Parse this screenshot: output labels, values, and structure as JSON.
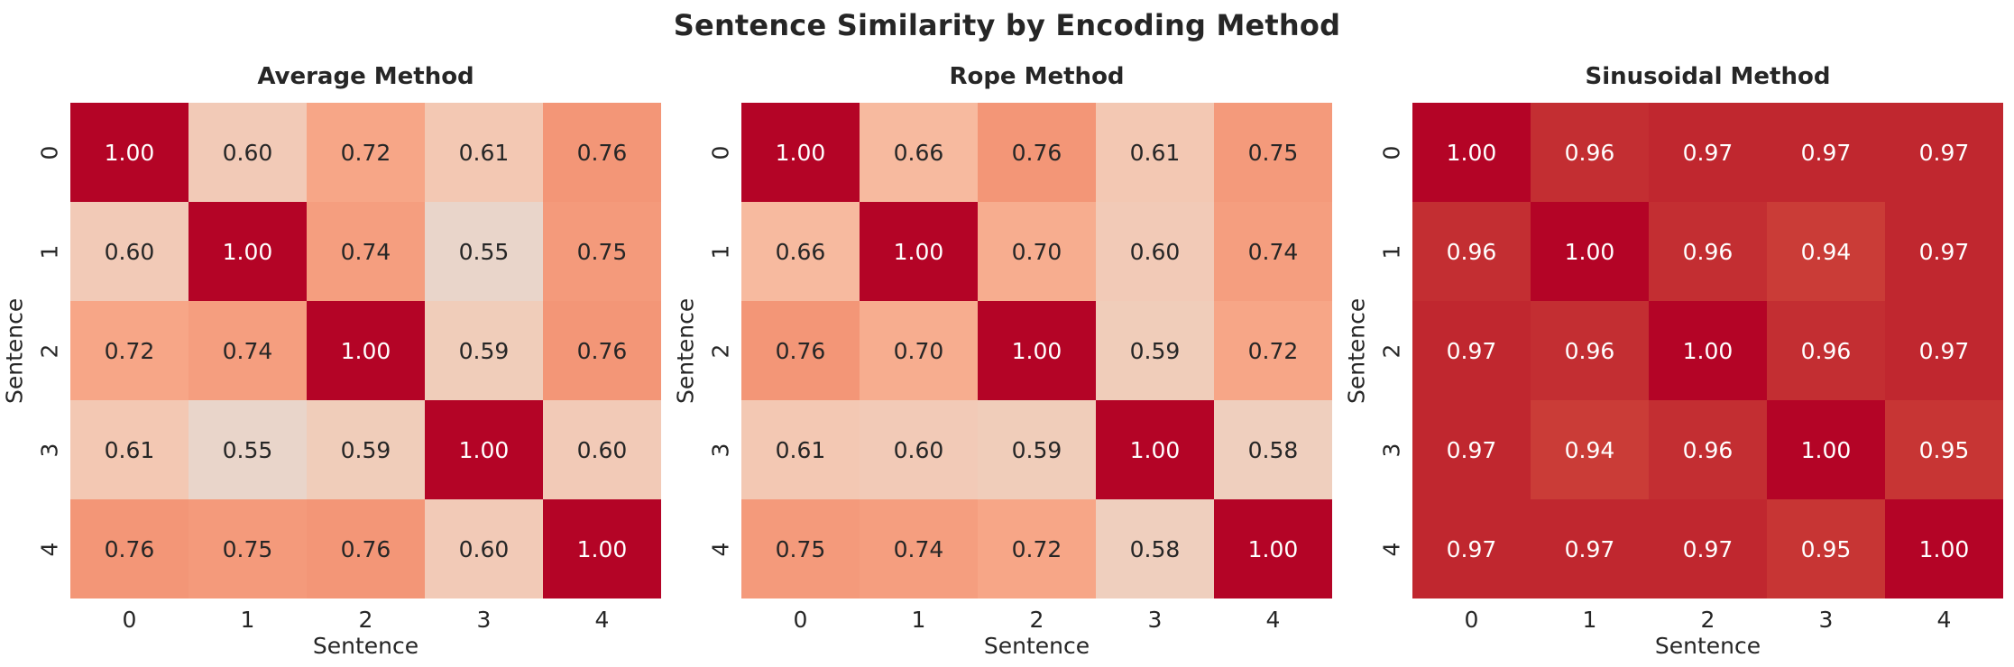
{
  "figure": {
    "suptitle": "Sentence Similarity by Encoding Method",
    "background": "#ffffff",
    "text_color": "#262626",
    "annot_dark_text": "#262626",
    "annot_light_text": "#ffffff"
  },
  "colormap": {
    "name": "coolwarm",
    "stops": [
      [
        0.5,
        "#dddddd"
      ],
      [
        0.53125,
        "#e5d8d1"
      ],
      [
        0.5625,
        "#ecd3c5"
      ],
      [
        0.59375,
        "#f1ccb9"
      ],
      [
        0.625,
        "#f5c4ad"
      ],
      [
        0.65625,
        "#f7bba0"
      ],
      [
        0.6875,
        "#f7b194"
      ],
      [
        0.71875,
        "#f7a687"
      ],
      [
        0.75,
        "#f49a7b"
      ],
      [
        0.78125,
        "#f18d6f"
      ],
      [
        0.8125,
        "#ec7f63"
      ],
      [
        0.84375,
        "#e57058"
      ],
      [
        0.875,
        "#de604d"
      ],
      [
        0.90625,
        "#d55042"
      ],
      [
        0.9375,
        "#cb3e38"
      ],
      [
        0.96875,
        "#c0282f"
      ],
      [
        1.0,
        "#b40426"
      ]
    ]
  },
  "chart_data": [
    {
      "type": "heatmap",
      "title": "Average Method",
      "xlabel": "Sentence",
      "ylabel": "Sentence",
      "x_ticklabels": [
        "0",
        "1",
        "2",
        "3",
        "4"
      ],
      "y_ticklabels": [
        "0",
        "1",
        "2",
        "3",
        "4"
      ],
      "vmin": 0,
      "vmax": 1,
      "annot_decimals": 2,
      "colorbar": false,
      "matrix": [
        [
          1.0,
          0.6,
          0.72,
          0.61,
          0.76
        ],
        [
          0.6,
          1.0,
          0.74,
          0.55,
          0.75
        ],
        [
          0.72,
          0.74,
          1.0,
          0.59,
          0.76
        ],
        [
          0.61,
          0.55,
          0.59,
          1.0,
          0.6
        ],
        [
          0.76,
          0.75,
          0.76,
          0.6,
          1.0
        ]
      ]
    },
    {
      "type": "heatmap",
      "title": "Rope Method",
      "xlabel": "Sentence",
      "ylabel": "Sentence",
      "x_ticklabels": [
        "0",
        "1",
        "2",
        "3",
        "4"
      ],
      "y_ticklabels": [
        "0",
        "1",
        "2",
        "3",
        "4"
      ],
      "vmin": 0,
      "vmax": 1,
      "annot_decimals": 2,
      "colorbar": false,
      "matrix": [
        [
          1.0,
          0.66,
          0.76,
          0.61,
          0.75
        ],
        [
          0.66,
          1.0,
          0.7,
          0.6,
          0.74
        ],
        [
          0.76,
          0.7,
          1.0,
          0.59,
          0.72
        ],
        [
          0.61,
          0.6,
          0.59,
          1.0,
          0.58
        ],
        [
          0.75,
          0.74,
          0.72,
          0.58,
          1.0
        ]
      ]
    },
    {
      "type": "heatmap",
      "title": "Sinusoidal Method",
      "xlabel": "Sentence",
      "ylabel": "Sentence",
      "x_ticklabels": [
        "0",
        "1",
        "2",
        "3",
        "4"
      ],
      "y_ticklabels": [
        "0",
        "1",
        "2",
        "3",
        "4"
      ],
      "vmin": 0,
      "vmax": 1,
      "annot_decimals": 2,
      "colorbar": false,
      "matrix": [
        [
          1.0,
          0.96,
          0.97,
          0.97,
          0.97
        ],
        [
          0.96,
          1.0,
          0.96,
          0.94,
          0.97
        ],
        [
          0.97,
          0.96,
          1.0,
          0.96,
          0.97
        ],
        [
          0.97,
          0.94,
          0.96,
          1.0,
          0.95
        ],
        [
          0.97,
          0.97,
          0.97,
          0.95,
          1.0
        ]
      ]
    }
  ]
}
